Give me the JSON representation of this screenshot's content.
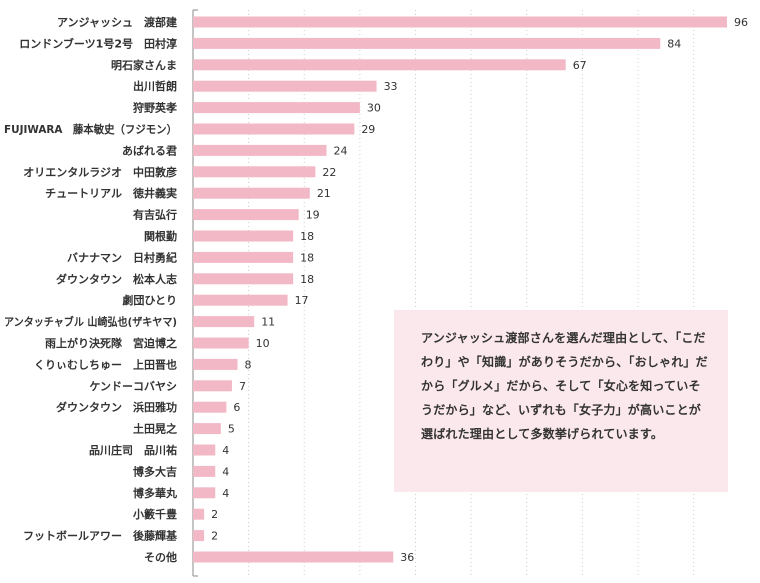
{
  "chart_data": {
    "type": "bar",
    "orientation": "horizontal",
    "categories": [
      "アンジャッシュ　渡部建",
      "ロンドンブーツ1号2号　田村淳",
      "明石家さんま",
      "出川哲朗",
      "狩野英孝",
      "FUJIWARA　藤本敏史（フジモン）",
      "あばれる君",
      "オリエンタルラジオ　中田敦彦",
      "チュートリアル　徳井義実",
      "有吉弘行",
      "関根勤",
      "バナナマン　日村勇紀",
      "ダウンタウン　松本人志",
      "劇団ひとり",
      "アンタッチャブル 山崎弘也(ザキヤマ)",
      "雨上がり決死隊　宮迫博之",
      "くりぃむしちゅー　上田晋也",
      "ケンドーコバヤシ",
      "ダウンタウン　浜田雅功",
      "土田晃之",
      "品川庄司　品川祐",
      "博多大吉",
      "博多華丸",
      "小籔千豊",
      "フットボールアワー　後藤輝基",
      "その他"
    ],
    "values": [
      96,
      84,
      67,
      33,
      30,
      29,
      24,
      22,
      21,
      19,
      18,
      18,
      18,
      17,
      11,
      10,
      8,
      7,
      6,
      5,
      4,
      4,
      4,
      2,
      2,
      36
    ],
    "xlim": [
      0,
      100
    ],
    "grid": true,
    "bar_color": "#f2b8c6",
    "axis_color": "#888888",
    "grid_color": "#cccccc"
  },
  "note": {
    "text": "アンジャッシュ渡部さんを選んだ理由として、「こだわり」や「知識」がありそうだから、「おしゃれ」だから「グルメ」だから、そして「女心を知っていそうだから」など、いずれも「女子力」が高いことが選ばれた理由として多数挙げられています。"
  }
}
